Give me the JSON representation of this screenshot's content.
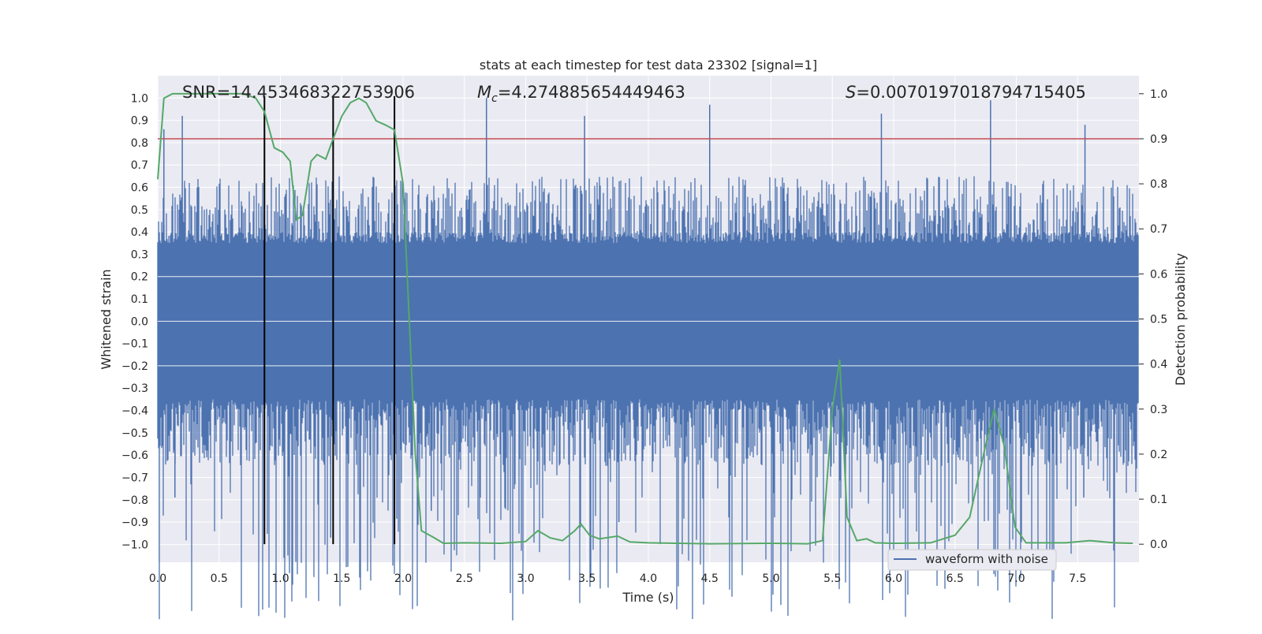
{
  "chart_data": {
    "type": "line",
    "title": "stats at each timestep for test data 23302 [signal=1]",
    "xlabel": "Time (s)",
    "ylabel_left": "Whitened strain",
    "ylabel_right": "Detection probability",
    "xlim": [
      0,
      8
    ],
    "ylim_left": [
      -1.08,
      1.1
    ],
    "ylim_right": [
      -0.04,
      1.04
    ],
    "x_ticks": [
      "0.0",
      "0.5",
      "1.0",
      "1.5",
      "2.0",
      "2.5",
      "3.0",
      "3.5",
      "4.0",
      "4.5",
      "5.0",
      "5.5",
      "6.0",
      "6.5",
      "7.0",
      "7.5"
    ],
    "y_ticks_left": [
      "−1.0",
      "−0.9",
      "−0.8",
      "−0.7",
      "−0.6",
      "−0.5",
      "−0.4",
      "−0.3",
      "−0.2",
      "−0.1",
      "0.0",
      "0.1",
      "0.2",
      "0.3",
      "0.4",
      "0.5",
      "0.6",
      "0.7",
      "0.8",
      "0.9",
      "1.0"
    ],
    "y_ticks_right": [
      "0.0",
      "0.1",
      "0.2",
      "0.3",
      "0.4",
      "0.5",
      "0.6",
      "0.7",
      "0.8",
      "0.9",
      "1.0"
    ],
    "grid": true,
    "legend_position": "lower-right",
    "annotations": {
      "snr": "SNR=14.453468322753906",
      "mc_symbol": "M",
      "mc_subscript": "c",
      "mc_value": "=4.274885654449463",
      "s_symbol": "S",
      "s_value": "=0.0070197018794715405"
    },
    "threshold": {
      "axis": "right",
      "value": 0.9,
      "color": "#c44e52"
    },
    "vertical_lines": [
      0.87,
      1.43,
      1.93
    ],
    "series": [
      {
        "name": "waveform with noise",
        "axis": "left",
        "color": "#4c72b0",
        "kind": "dense-noise",
        "x_range": [
          0,
          8
        ],
        "band_amplitude": 0.35,
        "typical_spike_range": [
          -0.65,
          0.65
        ],
        "peaks": [
          {
            "x": 0.05,
            "y": 0.86
          },
          {
            "x": 0.2,
            "y": 0.92
          },
          {
            "x": 0.14,
            "y": -0.79
          },
          {
            "x": 2.68,
            "y": 1.0
          },
          {
            "x": 3.48,
            "y": 0.92
          },
          {
            "x": 4.5,
            "y": 0.97
          },
          {
            "x": 5.9,
            "y": 0.93
          },
          {
            "x": 6.79,
            "y": 0.99
          },
          {
            "x": 7.56,
            "y": 0.88
          },
          {
            "x": 1.41,
            "y": -0.97
          },
          {
            "x": 2.23,
            "y": -0.85
          },
          {
            "x": 3.76,
            "y": -0.9
          },
          {
            "x": 7.55,
            "y": -0.79
          }
        ]
      },
      {
        "axis": "right",
        "color": "#55a868",
        "points": [
          [
            0.0,
            0.81
          ],
          [
            0.05,
            0.99
          ],
          [
            0.12,
            1.0
          ],
          [
            0.3,
            1.0
          ],
          [
            0.55,
            1.0
          ],
          [
            0.7,
            1.0
          ],
          [
            0.8,
            0.99
          ],
          [
            0.87,
            0.96
          ],
          [
            0.95,
            0.88
          ],
          [
            1.02,
            0.87
          ],
          [
            1.08,
            0.85
          ],
          [
            1.13,
            0.72
          ],
          [
            1.18,
            0.73
          ],
          [
            1.25,
            0.85
          ],
          [
            1.3,
            0.865
          ],
          [
            1.37,
            0.855
          ],
          [
            1.43,
            0.9
          ],
          [
            1.5,
            0.95
          ],
          [
            1.57,
            0.98
          ],
          [
            1.64,
            0.99
          ],
          [
            1.7,
            0.98
          ],
          [
            1.78,
            0.94
          ],
          [
            1.86,
            0.93
          ],
          [
            1.93,
            0.92
          ],
          [
            2.0,
            0.8
          ],
          [
            2.05,
            0.5
          ],
          [
            2.1,
            0.2
          ],
          [
            2.15,
            0.03
          ],
          [
            2.25,
            0.015
          ],
          [
            2.33,
            0.002
          ],
          [
            2.5,
            0.003
          ],
          [
            2.8,
            0.002
          ],
          [
            3.0,
            0.006
          ],
          [
            3.1,
            0.03
          ],
          [
            3.2,
            0.014
          ],
          [
            3.3,
            0.008
          ],
          [
            3.4,
            0.03
          ],
          [
            3.45,
            0.045
          ],
          [
            3.52,
            0.02
          ],
          [
            3.6,
            0.012
          ],
          [
            3.75,
            0.018
          ],
          [
            3.85,
            0.005
          ],
          [
            4.0,
            0.003
          ],
          [
            4.5,
            0.001
          ],
          [
            5.0,
            0.002
          ],
          [
            5.3,
            0.001
          ],
          [
            5.42,
            0.008
          ],
          [
            5.5,
            0.3
          ],
          [
            5.56,
            0.41
          ],
          [
            5.62,
            0.06
          ],
          [
            5.7,
            0.008
          ],
          [
            5.78,
            0.012
          ],
          [
            5.85,
            0.003
          ],
          [
            6.0,
            0.002
          ],
          [
            6.3,
            0.003
          ],
          [
            6.5,
            0.02
          ],
          [
            6.62,
            0.06
          ],
          [
            6.75,
            0.22
          ],
          [
            6.82,
            0.3
          ],
          [
            6.9,
            0.22
          ],
          [
            6.99,
            0.038
          ],
          [
            7.08,
            0.003
          ],
          [
            7.4,
            0.003
          ],
          [
            7.6,
            0.008
          ],
          [
            7.8,
            0.003
          ],
          [
            7.95,
            0.002
          ]
        ]
      }
    ]
  }
}
